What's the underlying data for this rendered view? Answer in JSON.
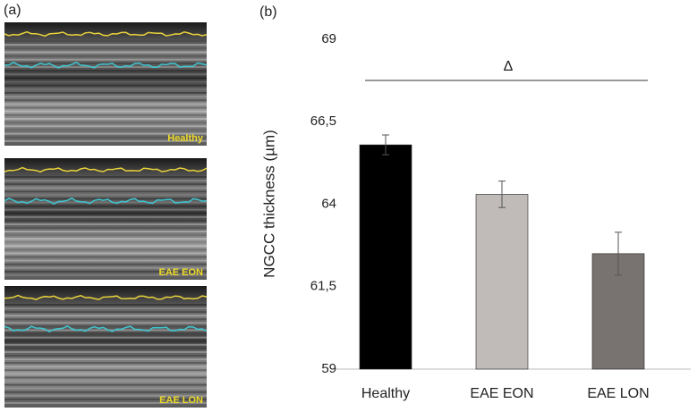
{
  "panel_a": {
    "label": "(a)",
    "images": [
      "Healthy",
      "EAE EON",
      "EAE LON"
    ]
  },
  "chart_data": {
    "type": "bar",
    "panel_label": "(b)",
    "ylabel": "NGCC thickness (µm)",
    "categories": [
      "Healthy",
      "EAE EON",
      "EAE LON"
    ],
    "values": [
      65.8,
      64.3,
      62.5
    ],
    "errors": [
      0.3,
      0.4,
      0.65
    ],
    "colors": [
      "#000000",
      "#c0bbb9",
      "#787270"
    ],
    "ylim": [
      59,
      69
    ],
    "yticks": [
      59,
      {
        "value": 61.5,
        "label": "61,5"
      },
      64,
      {
        "value": 66.5,
        "label": "66,5"
      },
      69
    ],
    "grid": false,
    "annotation": "Δ"
  }
}
